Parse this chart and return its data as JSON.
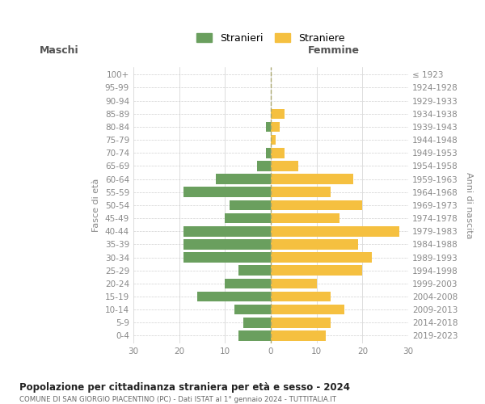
{
  "age_groups": [
    "0-4",
    "5-9",
    "10-14",
    "15-19",
    "20-24",
    "25-29",
    "30-34",
    "35-39",
    "40-44",
    "45-49",
    "50-54",
    "55-59",
    "60-64",
    "65-69",
    "70-74",
    "75-79",
    "80-84",
    "85-89",
    "90-94",
    "95-99",
    "100+"
  ],
  "birth_years": [
    "2019-2023",
    "2014-2018",
    "2009-2013",
    "2004-2008",
    "1999-2003",
    "1994-1998",
    "1989-1993",
    "1984-1988",
    "1979-1983",
    "1974-1978",
    "1969-1973",
    "1964-1968",
    "1959-1963",
    "1954-1958",
    "1949-1953",
    "1944-1948",
    "1939-1943",
    "1934-1938",
    "1929-1933",
    "1924-1928",
    "≤ 1923"
  ],
  "maschi": [
    7,
    6,
    8,
    16,
    10,
    7,
    19,
    19,
    19,
    10,
    9,
    19,
    12,
    3,
    1,
    0,
    1,
    0,
    0,
    0,
    0
  ],
  "femmine": [
    12,
    13,
    16,
    13,
    10,
    20,
    22,
    19,
    28,
    15,
    20,
    13,
    18,
    6,
    3,
    1,
    2,
    3,
    0,
    0,
    0
  ],
  "maschi_color": "#6a9f5e",
  "femmine_color": "#f5c040",
  "title_main": "Popolazione per cittadinanza straniera per età e sesso - 2024",
  "title_sub": "COMUNE DI SAN GIORGIO PIACENTINO (PC) - Dati ISTAT al 1° gennaio 2024 - TUTTITALIA.IT",
  "xlabel_left": "Maschi",
  "xlabel_right": "Femmine",
  "ylabel_left": "Fasce di età",
  "ylabel_right": "Anni di nascita",
  "legend_maschi": "Stranieri",
  "legend_femmine": "Straniere",
  "xlim": 30,
  "background_color": "#ffffff",
  "grid_color": "#d0d0d0"
}
